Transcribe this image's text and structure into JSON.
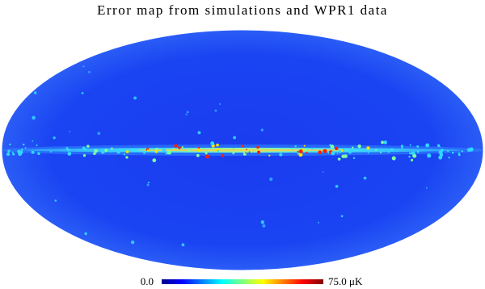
{
  "title": "Error map from simulations and WPR1 data",
  "colorbar": {
    "min_label": "0.0",
    "max_label": "75.0 μK"
  }
}
